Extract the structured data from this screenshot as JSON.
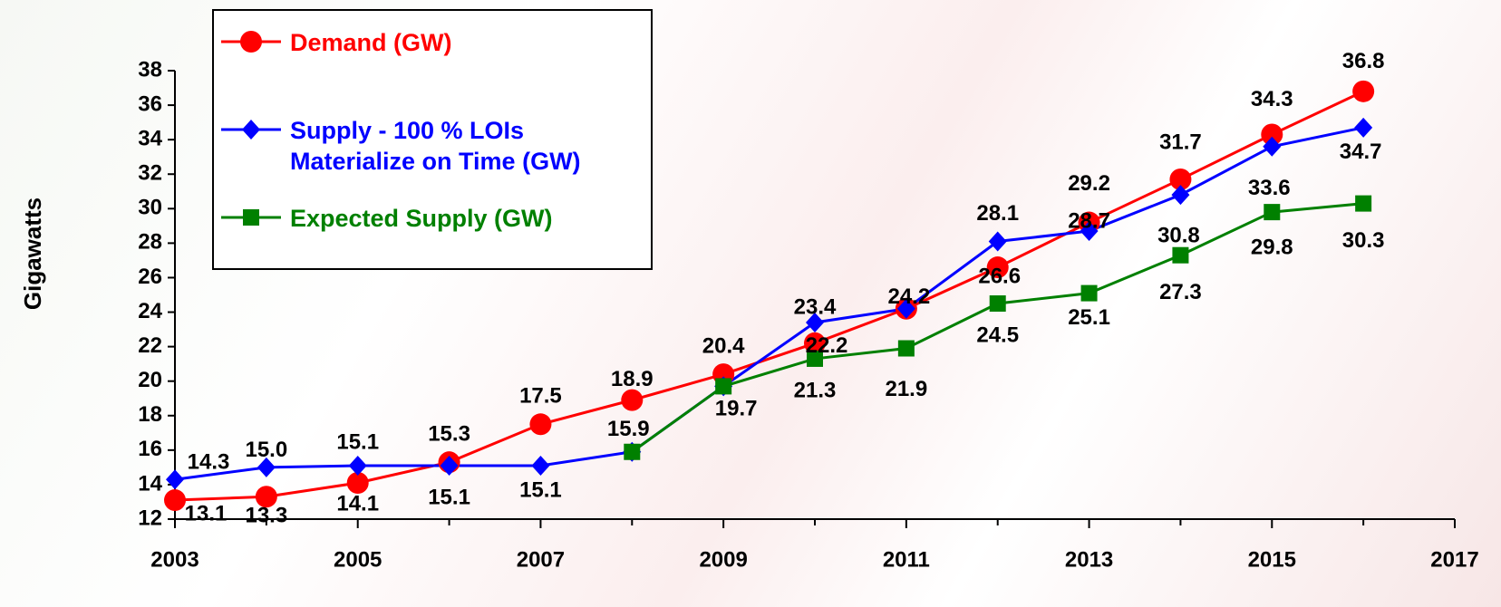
{
  "chart_data": {
    "type": "line",
    "y_label": "Gigawatts",
    "xlim": [
      2003,
      2017
    ],
    "xticks": [
      2003,
      2005,
      2007,
      2009,
      2011,
      2013,
      2015,
      2017
    ],
    "ylim": [
      12,
      38
    ],
    "yticks": [
      12,
      14,
      16,
      18,
      20,
      22,
      24,
      26,
      28,
      30,
      32,
      34,
      36,
      38
    ],
    "series": [
      {
        "name": "Demand (GW)",
        "color": "#ff0000",
        "marker": "circle",
        "x": [
          2003,
          2004,
          2005,
          2006,
          2007,
          2008,
          2009,
          2010,
          2011,
          2012,
          2013,
          2014,
          2015,
          2016
        ],
        "values": [
          13.1,
          13.3,
          14.1,
          15.3,
          17.5,
          18.9,
          20.4,
          22.2,
          24.2,
          26.6,
          29.2,
          31.7,
          34.3,
          36.8
        ]
      },
      {
        "name": "Supply - 100 % LOIs Materialize on Time (GW)",
        "color": "#0000ff",
        "marker": "diamond",
        "x": [
          2003,
          2004,
          2005,
          2006,
          2007,
          2008,
          2009,
          2010,
          2011,
          2012,
          2013,
          2014,
          2015,
          2016
        ],
        "values": [
          14.3,
          15.0,
          15.1,
          15.1,
          15.1,
          15.9,
          19.7,
          23.4,
          24.2,
          28.1,
          28.7,
          30.8,
          33.6,
          34.7
        ],
        "value_labels": [
          "14.3",
          "15.0",
          "15.1",
          "15.1",
          "15.1",
          null,
          null,
          "23.4",
          null,
          "28.1",
          "28.7",
          "30.8",
          "33.6",
          "34.7"
        ]
      },
      {
        "name": "Expected Supply (GW)",
        "color": "#008000",
        "marker": "square",
        "x": [
          2008,
          2009,
          2010,
          2011,
          2012,
          2013,
          2014,
          2015,
          2016
        ],
        "values": [
          15.9,
          19.7,
          21.3,
          21.9,
          24.5,
          25.1,
          27.3,
          29.8,
          30.3
        ]
      }
    ]
  }
}
